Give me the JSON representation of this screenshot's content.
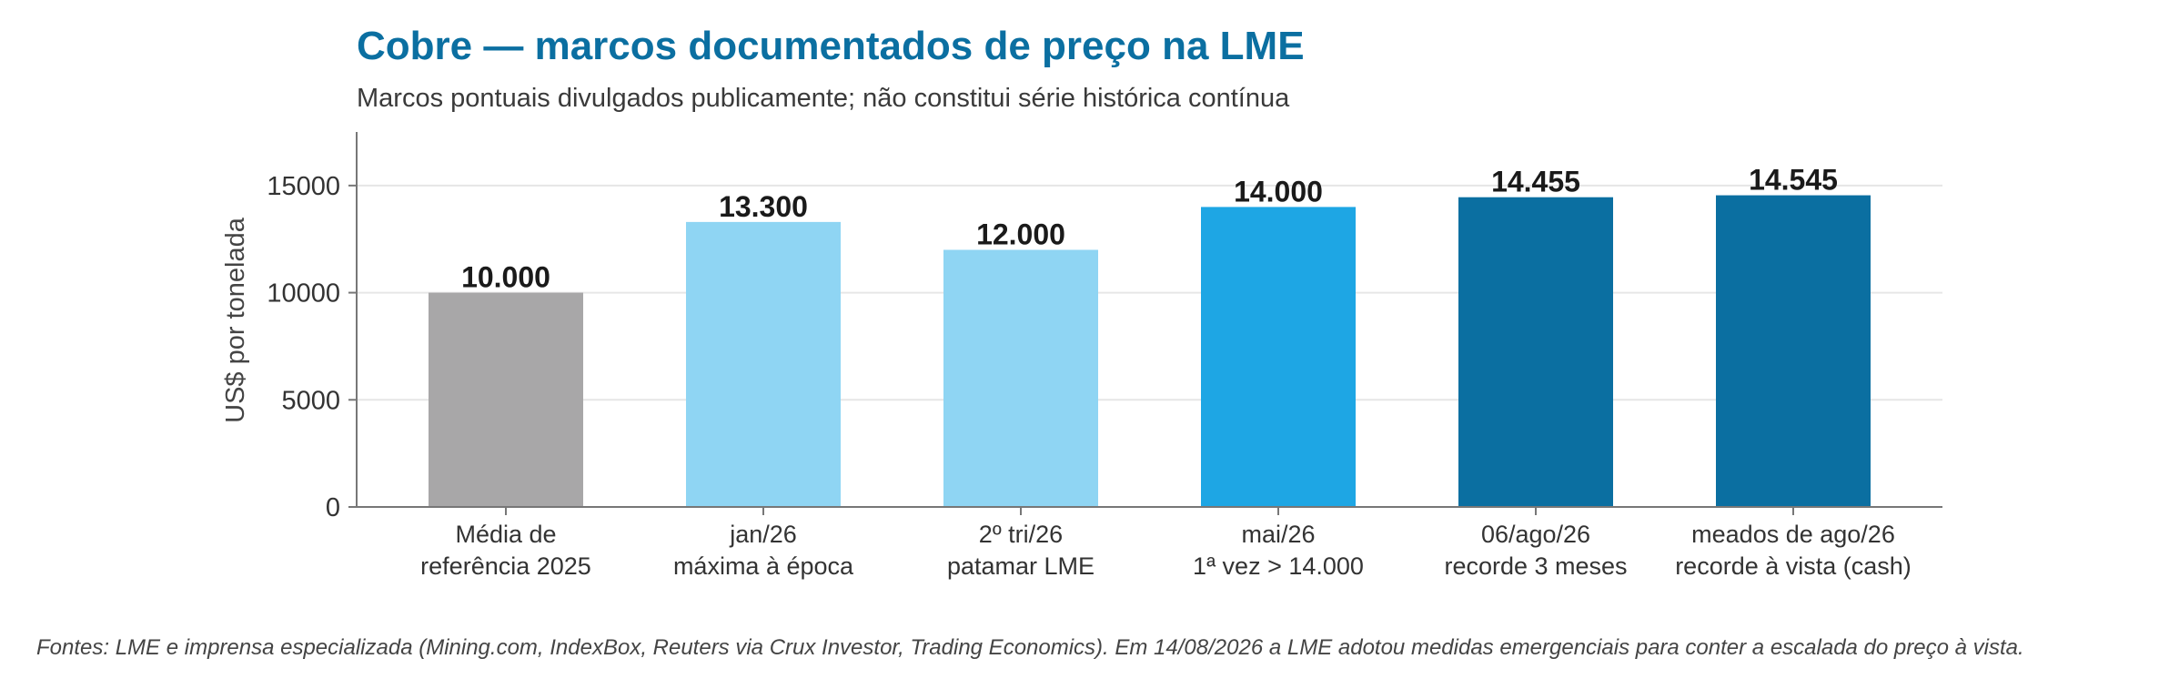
{
  "chart_data": {
    "type": "bar",
    "title": "Cobre — marcos documentados de preço na LME",
    "subtitle": "Marcos pontuais divulgados publicamente; não constitui série histórica contínua",
    "ylabel": "US$ por tonelada",
    "xlabel": "",
    "ylim": [
      0,
      17500
    ],
    "yticks": [
      0,
      5000,
      10000,
      15000
    ],
    "grid": true,
    "categories": [
      [
        "Média de",
        "referência 2025"
      ],
      [
        "jan/26",
        "máxima à época"
      ],
      [
        "2º tri/26",
        "patamar LME"
      ],
      [
        "mai/26",
        "1ª vez > 14.000"
      ],
      [
        "06/ago/26",
        "recorde 3 meses"
      ],
      [
        "meados de ago/26",
        "recorde à vista (cash)"
      ]
    ],
    "values": [
      10000,
      13300,
      12000,
      14000,
      14455,
      14545
    ],
    "value_labels": [
      "10.000",
      "13.300",
      "12.000",
      "14.000",
      "14.455",
      "14.545"
    ],
    "colors": [
      "#a8a7a8",
      "#8fd5f3",
      "#8fd5f3",
      "#1ea6e4",
      "#0b6fa1",
      "#0b6fa1"
    ],
    "footnote": "Fontes: LME e imprensa especializada (Mining.com, IndexBox, Reuters via Crux Investor, Trading Economics). Em 14/08/2026 a LME adotou medidas emergenciais para conter a escalada do preço à vista."
  }
}
